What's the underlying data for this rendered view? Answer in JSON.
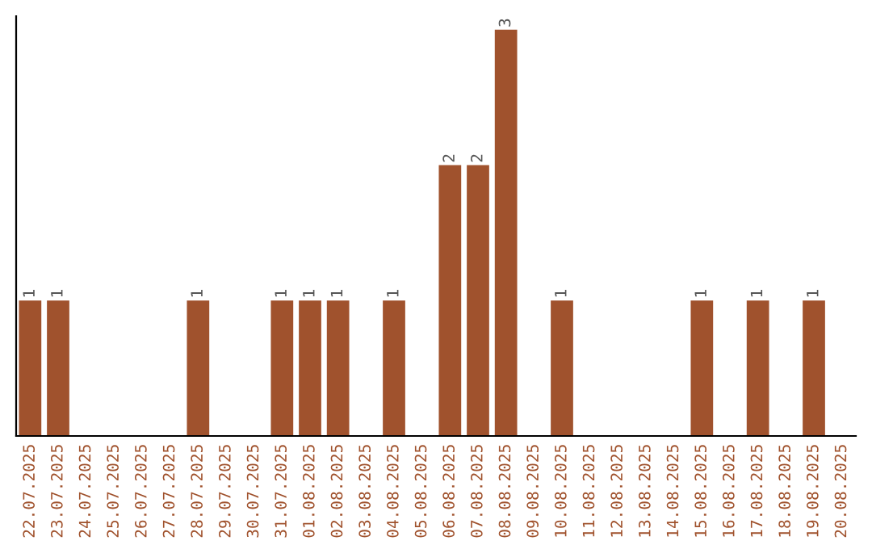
{
  "chart_data": {
    "type": "bar",
    "categories": [
      "22.07.2025",
      "23.07.2025",
      "24.07.2025",
      "25.07.2025",
      "26.07.2025",
      "27.07.2025",
      "28.07.2025",
      "29.07.2025",
      "30.07.2025",
      "31.07.2025",
      "01.08.2025",
      "02.08.2025",
      "03.08.2025",
      "04.08.2025",
      "05.08.2025",
      "06.08.2025",
      "07.08.2025",
      "08.08.2025",
      "09.08.2025",
      "10.08.2025",
      "11.08.2025",
      "12.08.2025",
      "13.08.2025",
      "14.08.2025",
      "15.08.2025",
      "16.08.2025",
      "17.08.2025",
      "18.08.2025",
      "19.08.2025",
      "20.08.2025"
    ],
    "values": [
      1,
      1,
      0,
      0,
      0,
      0,
      1,
      0,
      0,
      1,
      1,
      1,
      0,
      1,
      0,
      2,
      2,
      3,
      0,
      1,
      0,
      0,
      0,
      0,
      1,
      0,
      1,
      0,
      1,
      0
    ],
    "value_labels": [
      "1",
      "1",
      null,
      null,
      null,
      null,
      "1",
      null,
      null,
      "1",
      "1",
      "1",
      null,
      "1",
      null,
      "2",
      "2",
      "3",
      null,
      "1",
      null,
      null,
      null,
      null,
      "1",
      null,
      "1",
      null,
      "1",
      null
    ],
    "color": "#a0522d",
    "ylim": [
      0,
      3.1
    ],
    "tick_labels": "x",
    "grid": false,
    "legend": false
  }
}
